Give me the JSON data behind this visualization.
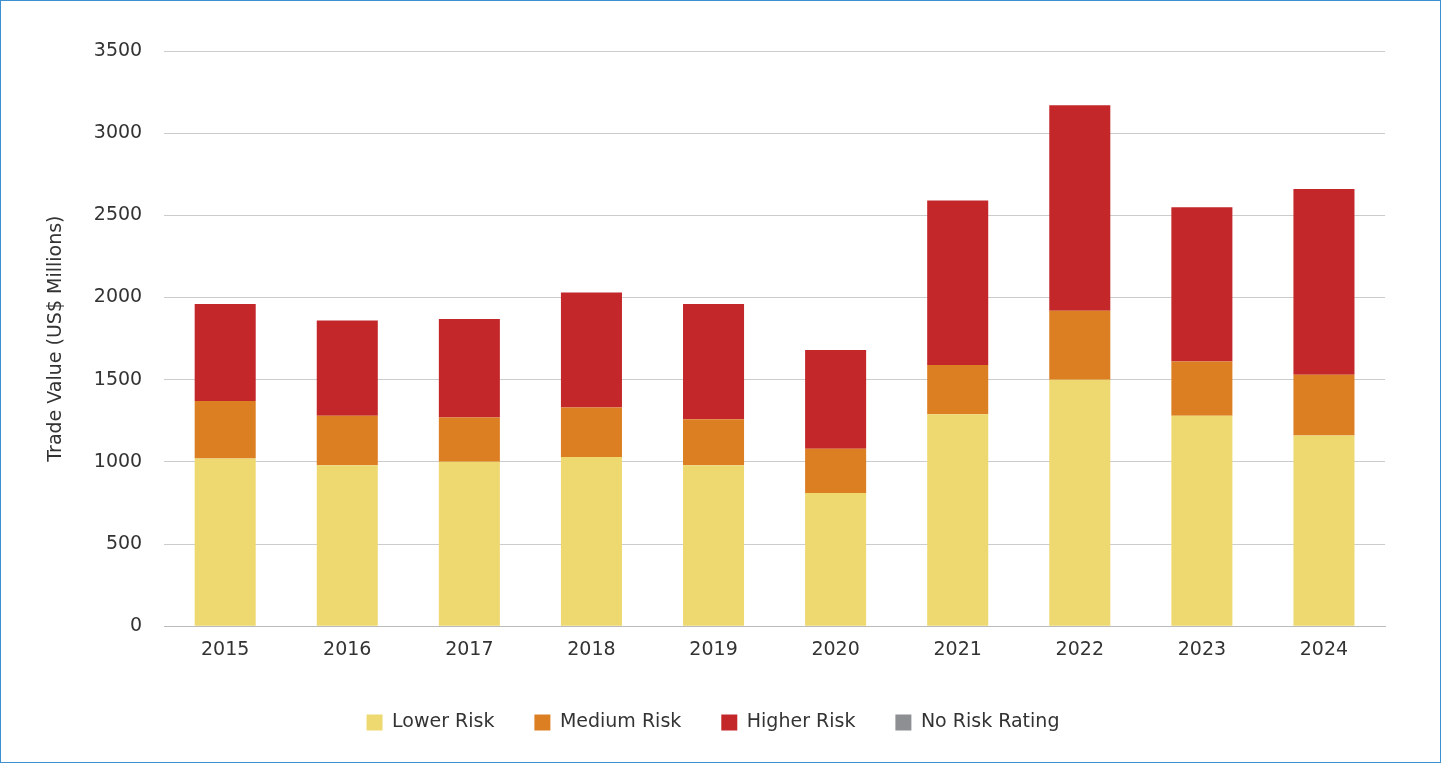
{
  "chart_data": {
    "type": "bar",
    "ylabel": "Trade Value (US$ Millions)",
    "stacked": true,
    "categories": [
      "2015",
      "2016",
      "2017",
      "2018",
      "2019",
      "2020",
      "2021",
      "2022",
      "2023",
      "2024"
    ],
    "series": [
      {
        "name": "Lower Risk",
        "color": "#eed971",
        "values": [
          1020,
          980,
          1000,
          1030,
          980,
          810,
          1290,
          1500,
          1280,
          1160
        ]
      },
      {
        "name": "Medium Risk",
        "color": "#dc7f22",
        "values": [
          350,
          300,
          270,
          300,
          280,
          270,
          300,
          420,
          330,
          370
        ]
      },
      {
        "name": "Higher Risk",
        "color": "#c3272a",
        "values": [
          590,
          580,
          600,
          700,
          700,
          600,
          1000,
          1250,
          940,
          1130
        ]
      },
      {
        "name": "No Risk Rating",
        "color": "#8d8f92",
        "values": [
          0,
          0,
          0,
          0,
          0,
          0,
          0,
          0,
          0,
          0
        ]
      }
    ],
    "ylim": [
      0,
      3500
    ],
    "yticks": [
      0,
      500,
      1000,
      1500,
      2000,
      2500,
      3000,
      3500
    ],
    "grid": "y",
    "legend": "bottom"
  }
}
